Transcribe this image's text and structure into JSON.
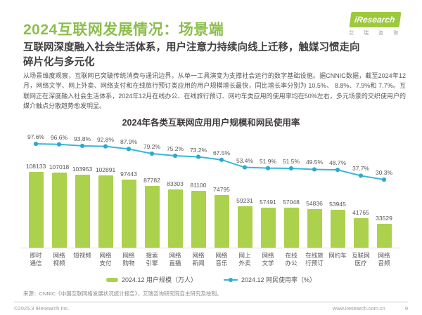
{
  "header": {
    "title": "2024互联网发展情况：场景端",
    "subtitle": "互联网深度融入社会生活体系，用户注意力持续向线上迁移，触媒习惯走向碎片化与多元化",
    "paragraph": "从场景维度观察，互联网已突破传统消费与通讯边界，从单一工具演变为支撑社会运行的数字基础设施。据CNNIC数据，截至2024年12月，网络文学、网上外卖、网络支付和在线旅行预订类应用的用户规模增长最快，同比增长率分别为 10.5%、 8.8%、7.9%和 7.7%。互联网正在深度融入社会生活体系，2024年12月在线办公、在线旅行预订、网约车类应用的使用率均在50%左右，多元场景的交织使用户的媒介触点分散趋势愈发明显。",
    "logo": {
      "brand": "iResearch",
      "brand_cn": "艾 瑞 咨 询"
    }
  },
  "colors": {
    "brand_green": "#8CBE4C",
    "bar_green": "#ABD14D",
    "line_blue": "#39B6D8",
    "dot_blue": "#2BA9CE"
  },
  "chart_data": {
    "type": "bar",
    "title": "2024年各类互联网应用用户规模和网民使用率",
    "categories": [
      "即时通信",
      "网络视频",
      "短视频",
      "网络支付",
      "网络购物",
      "搜索引擎",
      "网络直播",
      "网络新闻",
      "网络音乐",
      "网上外卖",
      "网络文学",
      "在线办公",
      "在线旅行预订",
      "网约车",
      "互联网医疗",
      "网络音频"
    ],
    "series": [
      {
        "name": "2024.12 用户规模（万人）",
        "type": "bar",
        "color": "#ABD14D",
        "values": [
          108133,
          107018,
          103953,
          102891,
          97443,
          87782,
          83303,
          81100,
          74795,
          59231,
          57491,
          57048,
          54836,
          53945,
          41765,
          33529
        ]
      },
      {
        "name": "2024.12 网民使用率（%）",
        "type": "line",
        "color": "#39B6D8",
        "values": [
          97.6,
          96.6,
          93.8,
          92.8,
          87.9,
          79.2,
          75.2,
          73.2,
          67.5,
          53.4,
          51.9,
          51.5,
          49.5,
          48.7,
          37.7,
          30.3
        ]
      }
    ],
    "xlabel": "",
    "ylabel": "",
    "legend_position": "bottom",
    "grid": false
  },
  "footer": {
    "source": "来源：CNNIC《中国互联网络发展状况统计报告》，艾瑞咨询研究院自主研究及绘制。",
    "copyright": "©2025.3 iResearch Inc.",
    "website": "www.iresearch.com.cn",
    "page_number": "9"
  }
}
